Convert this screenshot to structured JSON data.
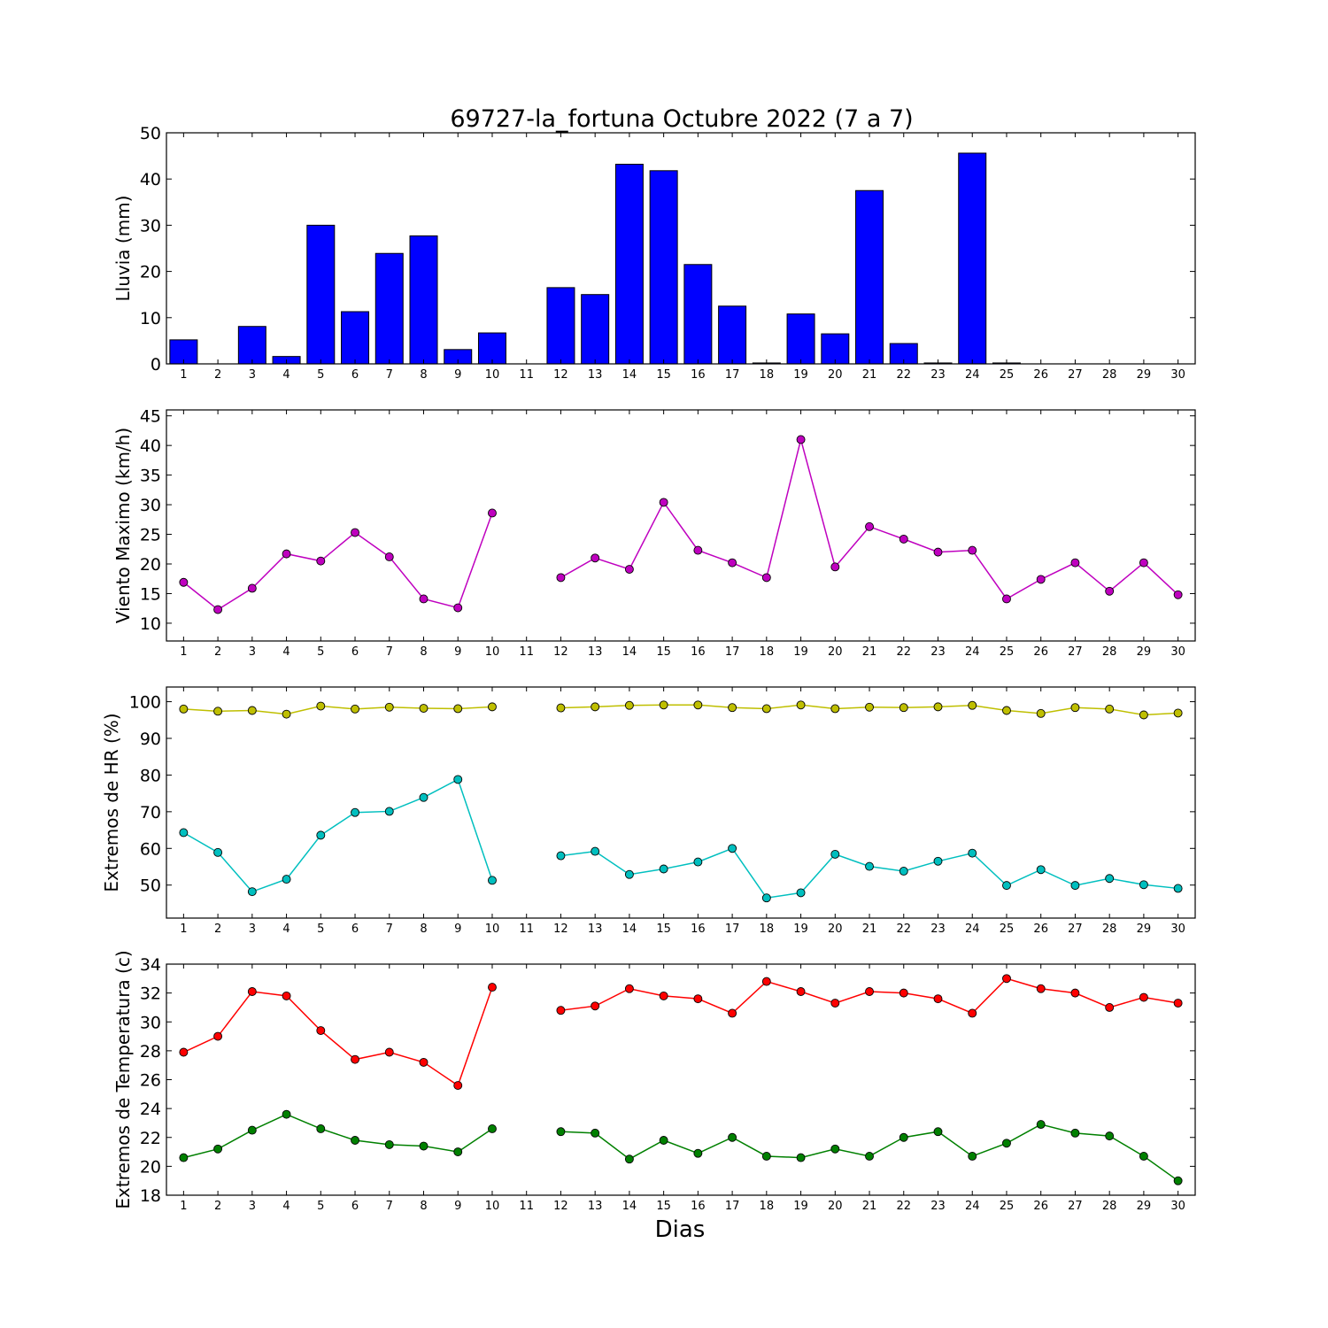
{
  "title": "69727-la_fortuna Octubre 2022  (7 a 7)",
  "xlabel": "Dias",
  "colors": {
    "rain": "#0000ff",
    "wind": "#bf00bf",
    "hr_max": "#bfbf00",
    "hr_min": "#00bfbf",
    "temp_max": "#ff0000",
    "temp_min": "#008000"
  },
  "chart_data": [
    {
      "type": "bar",
      "ylabel": "Lluvia (mm)",
      "ylim": [
        0,
        50
      ],
      "yticks": [
        0,
        10,
        20,
        30,
        40,
        50
      ],
      "x": [
        1,
        2,
        3,
        4,
        5,
        6,
        7,
        8,
        9,
        10,
        11,
        12,
        13,
        14,
        15,
        16,
        17,
        18,
        19,
        20,
        21,
        22,
        23,
        24,
        25,
        26,
        27,
        28,
        29,
        30
      ],
      "values": [
        5.2,
        0,
        8.1,
        1.6,
        30,
        11.3,
        23.9,
        27.7,
        3.1,
        6.7,
        null,
        16.5,
        15,
        43.2,
        41.8,
        21.5,
        12.5,
        0.2,
        10.8,
        6.5,
        37.5,
        4.4,
        0.2,
        45.6,
        0.2,
        0,
        0,
        0,
        0,
        0
      ]
    },
    {
      "type": "line",
      "ylabel": "Viento Maximo (km/h)",
      "ylim": [
        7,
        46
      ],
      "yticks": [
        10,
        15,
        20,
        25,
        30,
        35,
        40,
        45
      ],
      "x": [
        1,
        2,
        3,
        4,
        5,
        6,
        7,
        8,
        9,
        10,
        11,
        12,
        13,
        14,
        15,
        16,
        17,
        18,
        19,
        20,
        21,
        22,
        23,
        24,
        25,
        26,
        27,
        28,
        29,
        30
      ],
      "series": [
        {
          "color_key": "wind",
          "values": [
            16.9,
            12.3,
            15.9,
            21.7,
            20.5,
            25.3,
            21.2,
            14.1,
            12.6,
            28.6,
            null,
            17.7,
            21,
            19.1,
            30.4,
            22.3,
            20.2,
            17.7,
            41,
            19.5,
            26.3,
            24.2,
            22,
            22.3,
            14.1,
            17.4,
            20.2,
            15.4,
            20.2,
            14.8
          ]
        }
      ]
    },
    {
      "type": "line",
      "ylabel": "Extremos de HR (%)",
      "ylim": [
        41,
        104
      ],
      "yticks": [
        50,
        60,
        70,
        80,
        90,
        100
      ],
      "x": [
        1,
        2,
        3,
        4,
        5,
        6,
        7,
        8,
        9,
        10,
        11,
        12,
        13,
        14,
        15,
        16,
        17,
        18,
        19,
        20,
        21,
        22,
        23,
        24,
        25,
        26,
        27,
        28,
        29,
        30
      ],
      "series": [
        {
          "color_key": "hr_max",
          "values": [
            98,
            97.4,
            97.6,
            96.6,
            98.8,
            98,
            98.5,
            98.2,
            98.1,
            98.6,
            null,
            98.3,
            98.6,
            99,
            99.1,
            99.1,
            98.4,
            98.1,
            99.1,
            98.1,
            98.5,
            98.4,
            98.6,
            99,
            97.6,
            96.8,
            98.4,
            98,
            96.4,
            96.9
          ]
        },
        {
          "color_key": "hr_min",
          "values": [
            64.3,
            58.9,
            48.2,
            51.6,
            63.6,
            69.8,
            70.1,
            73.9,
            78.8,
            51.3,
            null,
            58,
            59.2,
            52.9,
            54.4,
            56.3,
            60,
            46.5,
            47.9,
            58.4,
            55.1,
            53.8,
            56.5,
            58.7,
            49.9,
            54.2,
            49.9,
            51.8,
            50.1,
            49.1
          ]
        }
      ]
    },
    {
      "type": "line",
      "ylabel": "Extremos de Temperatura (c)",
      "ylim": [
        18,
        34
      ],
      "yticks": [
        18,
        20,
        22,
        24,
        26,
        28,
        30,
        32,
        34
      ],
      "x": [
        1,
        2,
        3,
        4,
        5,
        6,
        7,
        8,
        9,
        10,
        11,
        12,
        13,
        14,
        15,
        16,
        17,
        18,
        19,
        20,
        21,
        22,
        23,
        24,
        25,
        26,
        27,
        28,
        29,
        30
      ],
      "series": [
        {
          "color_key": "temp_max",
          "values": [
            27.9,
            29,
            32.1,
            31.8,
            29.4,
            27.4,
            27.9,
            27.2,
            25.6,
            32.4,
            null,
            30.8,
            31.1,
            32.3,
            31.8,
            31.6,
            30.6,
            32.8,
            32.1,
            31.3,
            32.1,
            32,
            31.6,
            30.6,
            33,
            32.3,
            32,
            31,
            31.7,
            31.3
          ]
        },
        {
          "color_key": "temp_min",
          "values": [
            20.6,
            21.2,
            22.5,
            23.6,
            22.6,
            21.8,
            21.5,
            21.4,
            21,
            22.6,
            null,
            22.4,
            22.3,
            20.5,
            21.8,
            20.9,
            22,
            20.7,
            20.6,
            21.2,
            20.7,
            22,
            22.4,
            20.7,
            21.6,
            22.9,
            22.3,
            22.1,
            20.7,
            19
          ]
        }
      ]
    }
  ]
}
